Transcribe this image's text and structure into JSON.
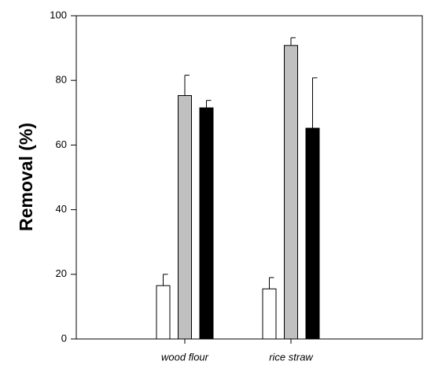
{
  "chart_data": {
    "type": "bar",
    "y_label": "Removal (%)",
    "categories": [
      "wood flour",
      "rice straw"
    ],
    "series": [
      {
        "color": "#ffffff",
        "values": [
          16.5,
          15.5
        ],
        "errors": [
          3.5,
          3.5
        ]
      },
      {
        "color": "#c0c0c0",
        "values": [
          75.3,
          90.8
        ],
        "errors": [
          6.3,
          2.4
        ]
      },
      {
        "color": "#000000",
        "values": [
          71.5,
          65.2
        ],
        "errors": [
          2.3,
          15.6
        ]
      }
    ],
    "ylim": [
      0,
      100
    ],
    "yticks": [
      0,
      20,
      40,
      60,
      80,
      100
    ],
    "grid": false
  }
}
